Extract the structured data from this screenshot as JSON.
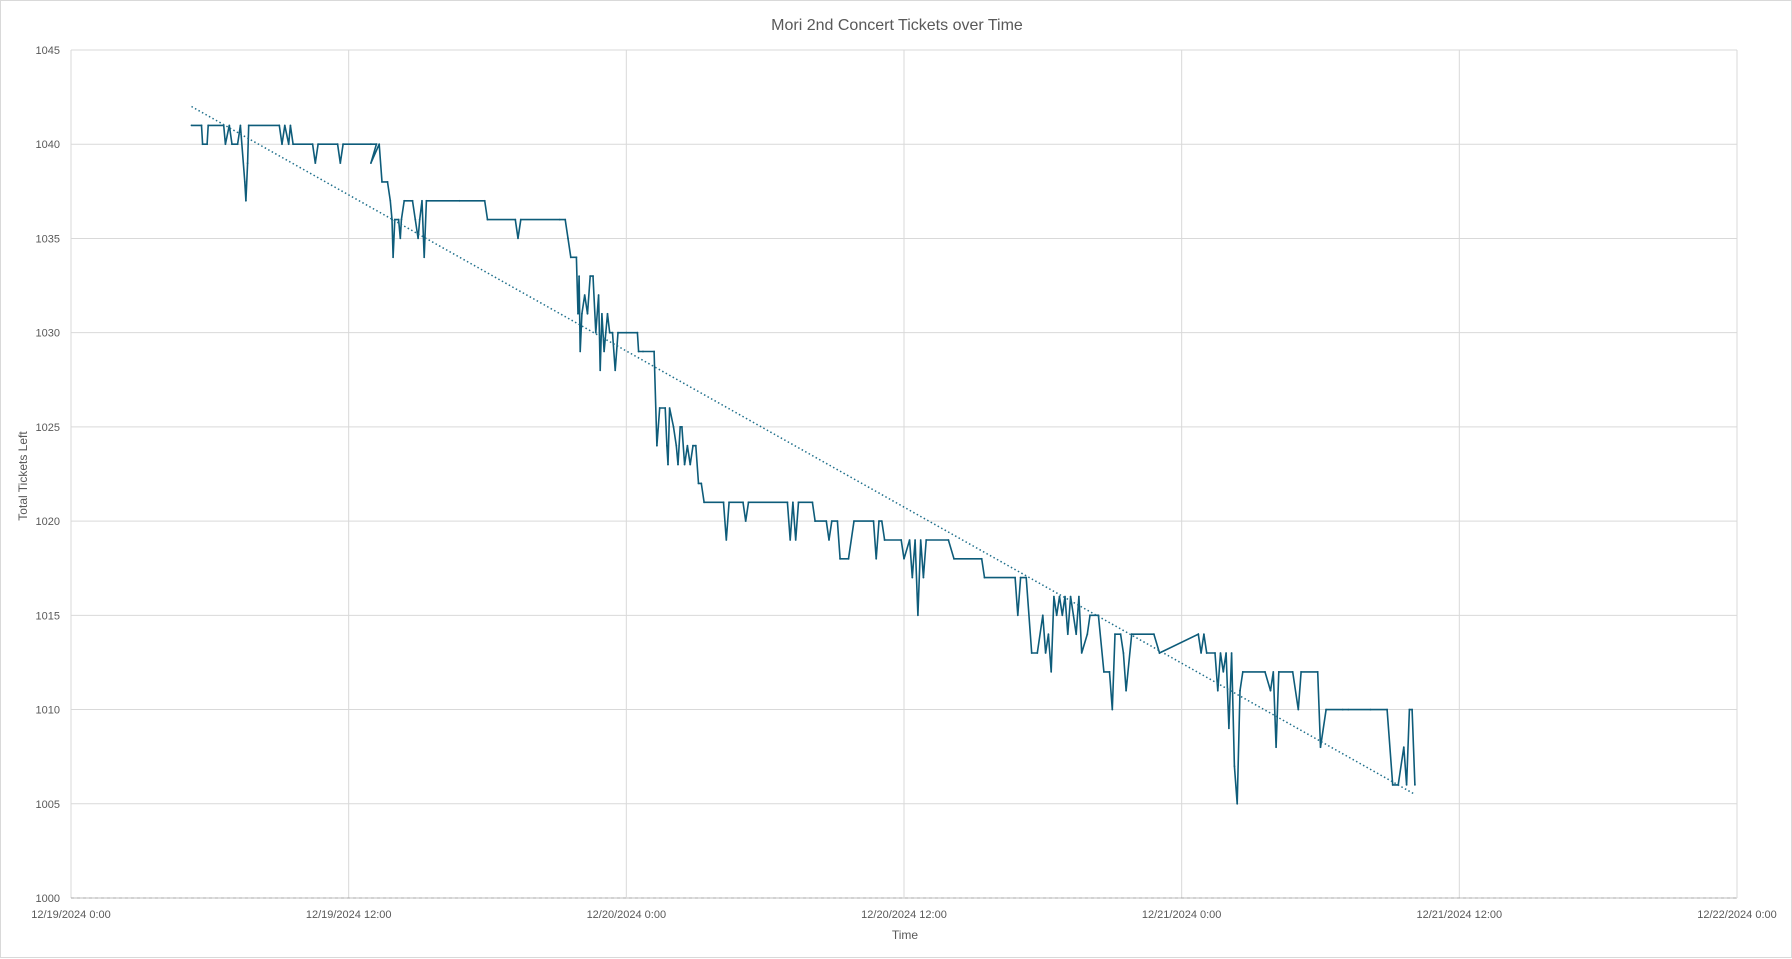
{
  "chart_data": {
    "type": "line",
    "title": "Mori 2nd Concert Tickets over Time",
    "xlabel": "Time",
    "ylabel": "Total Tickets Left",
    "ylim": [
      1000,
      1045
    ],
    "yticks": [
      1000,
      1005,
      1010,
      1015,
      1020,
      1025,
      1030,
      1035,
      1040,
      1045
    ],
    "xlim_days": [
      0,
      3
    ],
    "xticks": [
      {
        "t": 0,
        "label": "12/19/2024 0:00"
      },
      {
        "t": 0.5,
        "label": "12/19/2024 12:00"
      },
      {
        "t": 1.0,
        "label": "12/20/2024 0:00"
      },
      {
        "t": 1.5,
        "label": "12/20/2024 12:00"
      },
      {
        "t": 2.0,
        "label": "12/21/2024 0:00"
      },
      {
        "t": 2.5,
        "label": "12/21/2024 12:00"
      },
      {
        "t": 3.0,
        "label": "12/22/2024 0:00"
      }
    ],
    "x_origin": "12/19/2024 0:00",
    "grid": true,
    "legend": "none",
    "series": [
      {
        "type": "line",
        "color": "#0e5c7a",
        "points": [
          [
            0.217,
            1041
          ],
          [
            0.235,
            1041
          ],
          [
            0.237,
            1040
          ],
          [
            0.245,
            1040
          ],
          [
            0.247,
            1041
          ],
          [
            0.275,
            1041
          ],
          [
            0.278,
            1040
          ],
          [
            0.285,
            1041
          ],
          [
            0.29,
            1040
          ],
          [
            0.3,
            1040
          ],
          [
            0.305,
            1041
          ],
          [
            0.313,
            1038
          ],
          [
            0.315,
            1037
          ],
          [
            0.318,
            1039
          ],
          [
            0.32,
            1041
          ],
          [
            0.375,
            1041
          ],
          [
            0.38,
            1040
          ],
          [
            0.385,
            1041
          ],
          [
            0.392,
            1040
          ],
          [
            0.395,
            1041
          ],
          [
            0.4,
            1040
          ],
          [
            0.435,
            1040
          ],
          [
            0.44,
            1039
          ],
          [
            0.445,
            1040
          ],
          [
            0.48,
            1040
          ],
          [
            0.485,
            1039
          ],
          [
            0.49,
            1040
          ],
          [
            0.54,
            1040
          ],
          [
            0.55,
            1040
          ],
          [
            0.54,
            1039
          ],
          [
            0.555,
            1040
          ],
          [
            0.56,
            1038
          ],
          [
            0.57,
            1038
          ],
          [
            0.575,
            1037
          ],
          [
            0.578,
            1036
          ],
          [
            0.58,
            1034
          ],
          [
            0.583,
            1036
          ],
          [
            0.59,
            1036
          ],
          [
            0.593,
            1035
          ],
          [
            0.595,
            1036
          ],
          [
            0.6,
            1037
          ],
          [
            0.615,
            1037
          ],
          [
            0.62,
            1036
          ],
          [
            0.625,
            1035
          ],
          [
            0.628,
            1036
          ],
          [
            0.632,
            1037
          ],
          [
            0.636,
            1034
          ],
          [
            0.64,
            1037
          ],
          [
            0.7,
            1037
          ],
          [
            0.745,
            1037
          ],
          [
            0.75,
            1036
          ],
          [
            0.8,
            1036
          ],
          [
            0.805,
            1035
          ],
          [
            0.81,
            1036
          ],
          [
            0.88,
            1036
          ],
          [
            0.89,
            1036
          ],
          [
            0.895,
            1035
          ],
          [
            0.9,
            1034
          ],
          [
            0.91,
            1034
          ],
          [
            0.913,
            1031
          ],
          [
            0.915,
            1033
          ],
          [
            0.917,
            1029
          ],
          [
            0.92,
            1031
          ],
          [
            0.925,
            1032
          ],
          [
            0.93,
            1031
          ],
          [
            0.935,
            1033
          ],
          [
            0.94,
            1033
          ],
          [
            0.945,
            1030
          ],
          [
            0.95,
            1032
          ],
          [
            0.953,
            1028
          ],
          [
            0.956,
            1031
          ],
          [
            0.96,
            1029
          ],
          [
            0.963,
            1030
          ],
          [
            0.966,
            1031
          ],
          [
            0.97,
            1030
          ],
          [
            0.975,
            1030
          ],
          [
            0.98,
            1028
          ],
          [
            0.985,
            1030
          ],
          [
            1.0,
            1030
          ],
          [
            1.02,
            1030
          ],
          [
            1.022,
            1029
          ],
          [
            1.03,
            1029
          ],
          [
            1.05,
            1029
          ],
          [
            1.055,
            1024
          ],
          [
            1.06,
            1026
          ],
          [
            1.07,
            1026
          ],
          [
            1.073,
            1024
          ],
          [
            1.075,
            1023
          ],
          [
            1.078,
            1026
          ],
          [
            1.085,
            1025
          ],
          [
            1.09,
            1024
          ],
          [
            1.093,
            1023
          ],
          [
            1.097,
            1025
          ],
          [
            1.1,
            1025
          ],
          [
            1.105,
            1023
          ],
          [
            1.11,
            1024
          ],
          [
            1.115,
            1023
          ],
          [
            1.12,
            1024
          ],
          [
            1.125,
            1024
          ],
          [
            1.13,
            1022
          ],
          [
            1.135,
            1022
          ],
          [
            1.14,
            1021
          ],
          [
            1.175,
            1021
          ],
          [
            1.18,
            1019
          ],
          [
            1.185,
            1021
          ],
          [
            1.21,
            1021
          ],
          [
            1.215,
            1020
          ],
          [
            1.22,
            1021
          ],
          [
            1.29,
            1021
          ],
          [
            1.295,
            1019
          ],
          [
            1.3,
            1021
          ],
          [
            1.305,
            1019
          ],
          [
            1.31,
            1021
          ],
          [
            1.335,
            1021
          ],
          [
            1.34,
            1020
          ],
          [
            1.36,
            1020
          ],
          [
            1.365,
            1019
          ],
          [
            1.37,
            1020
          ],
          [
            1.38,
            1020
          ],
          [
            1.385,
            1018
          ],
          [
            1.4,
            1018
          ],
          [
            1.41,
            1020
          ],
          [
            1.445,
            1020
          ],
          [
            1.45,
            1018
          ],
          [
            1.455,
            1020
          ],
          [
            1.46,
            1020
          ],
          [
            1.465,
            1019
          ],
          [
            1.495,
            1019
          ],
          [
            1.5,
            1018
          ],
          [
            1.51,
            1019
          ],
          [
            1.515,
            1017
          ],
          [
            1.52,
            1019
          ],
          [
            1.525,
            1015
          ],
          [
            1.53,
            1019
          ],
          [
            1.535,
            1017
          ],
          [
            1.54,
            1019
          ],
          [
            1.58,
            1019
          ],
          [
            1.59,
            1018
          ],
          [
            1.64,
            1018
          ],
          [
            1.645,
            1017
          ],
          [
            1.7,
            1017
          ],
          [
            1.705,
            1015
          ],
          [
            1.71,
            1017
          ],
          [
            1.72,
            1017
          ],
          [
            1.73,
            1013
          ],
          [
            1.74,
            1013
          ],
          [
            1.75,
            1015
          ],
          [
            1.755,
            1013
          ],
          [
            1.76,
            1014
          ],
          [
            1.765,
            1012
          ],
          [
            1.77,
            1016
          ],
          [
            1.775,
            1015
          ],
          [
            1.78,
            1016
          ],
          [
            1.785,
            1015
          ],
          [
            1.79,
            1016
          ],
          [
            1.795,
            1014
          ],
          [
            1.8,
            1016
          ],
          [
            1.805,
            1015
          ],
          [
            1.81,
            1014
          ],
          [
            1.815,
            1016
          ],
          [
            1.82,
            1013
          ],
          [
            1.83,
            1014
          ],
          [
            1.835,
            1015
          ],
          [
            1.85,
            1015
          ],
          [
            1.86,
            1012
          ],
          [
            1.87,
            1012
          ],
          [
            1.875,
            1010
          ],
          [
            1.88,
            1014
          ],
          [
            1.89,
            1014
          ],
          [
            1.895,
            1013
          ],
          [
            1.9,
            1011
          ],
          [
            1.91,
            1014
          ],
          [
            1.95,
            1014
          ],
          [
            1.96,
            1013
          ],
          [
            2.03,
            1014
          ],
          [
            2.035,
            1013
          ],
          [
            2.04,
            1014
          ],
          [
            2.045,
            1013
          ],
          [
            2.06,
            1013
          ],
          [
            2.065,
            1011
          ],
          [
            2.07,
            1013
          ],
          [
            2.075,
            1012
          ],
          [
            2.08,
            1013
          ],
          [
            2.085,
            1009
          ],
          [
            2.09,
            1013
          ],
          [
            2.095,
            1007
          ],
          [
            2.1,
            1005
          ],
          [
            2.105,
            1011
          ],
          [
            2.11,
            1012
          ],
          [
            2.15,
            1012
          ],
          [
            2.16,
            1011
          ],
          [
            2.165,
            1012
          ],
          [
            2.17,
            1008
          ],
          [
            2.175,
            1012
          ],
          [
            2.2,
            1012
          ],
          [
            2.21,
            1010
          ],
          [
            2.215,
            1012
          ],
          [
            2.245,
            1012
          ],
          [
            2.25,
            1008
          ],
          [
            2.26,
            1010
          ],
          [
            2.29,
            1010
          ],
          [
            2.3,
            1010
          ],
          [
            2.34,
            1010
          ],
          [
            2.37,
            1010
          ],
          [
            2.38,
            1006
          ],
          [
            2.39,
            1006
          ],
          [
            2.4,
            1008
          ],
          [
            2.405,
            1006
          ],
          [
            2.41,
            1010
          ],
          [
            2.415,
            1010
          ],
          [
            2.42,
            1006
          ]
        ]
      },
      {
        "type": "trendline",
        "style": "dotted",
        "color": "#1f6f8b",
        "points": [
          [
            0.217,
            1042
          ],
          [
            2.42,
            1005.5
          ]
        ]
      }
    ]
  }
}
